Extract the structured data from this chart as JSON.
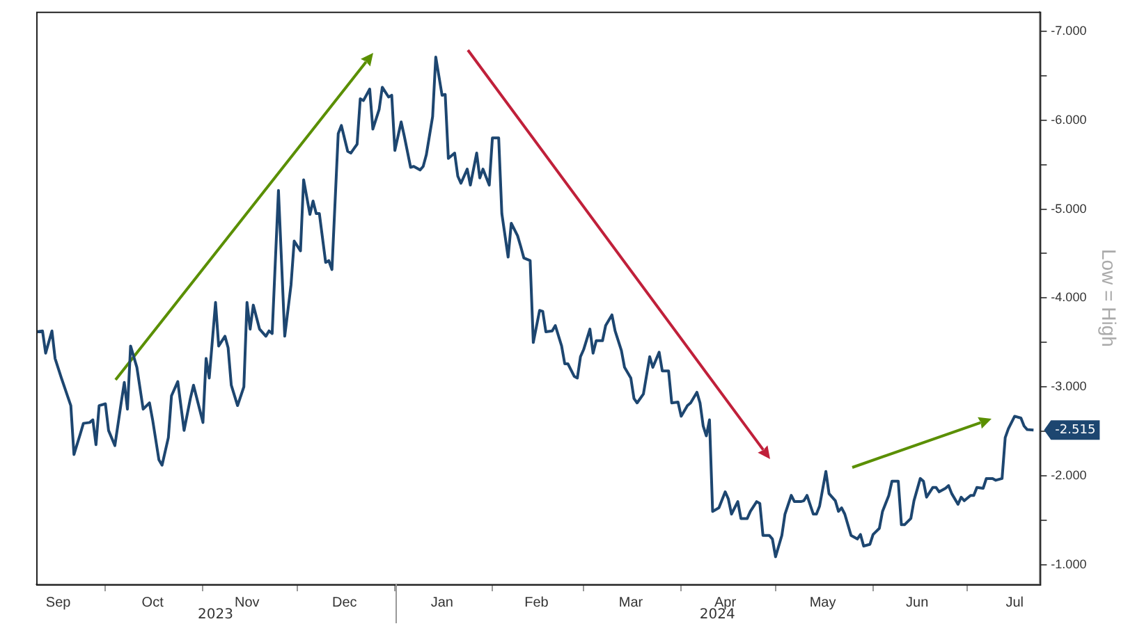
{
  "chart_data": {
    "type": "line",
    "ylabel": "Low = High",
    "legend": false,
    "grid": false,
    "marker": "none",
    "line_style": "solid",
    "xlim": [
      "2023-09-09",
      "2024-07-24"
    ],
    "ylim": [
      -0.78,
      -7.22
    ],
    "xticks": [
      {
        "value": "2023-09-16",
        "label": "Sep"
      },
      {
        "value": "2023-10-01",
        "label": null
      },
      {
        "value": "2023-10-16",
        "label": "Oct"
      },
      {
        "value": "2023-11-01",
        "label": null
      },
      {
        "value": "2023-11-15",
        "label": "Nov"
      },
      {
        "value": "2023-12-01",
        "label": null
      },
      {
        "value": "2023-12-16",
        "label": "Dec"
      },
      {
        "value": "2024-01-01",
        "label": null
      },
      {
        "value": "2024-01-16",
        "label": "Jan"
      },
      {
        "value": "2024-02-01",
        "label": null
      },
      {
        "value": "2024-02-15",
        "label": "Feb"
      },
      {
        "value": "2024-03-01",
        "label": null
      },
      {
        "value": "2024-03-16",
        "label": "Mar"
      },
      {
        "value": "2024-04-01",
        "label": null
      },
      {
        "value": "2024-04-15",
        "label": "Apr"
      },
      {
        "value": "2024-05-01",
        "label": null
      },
      {
        "value": "2024-05-16",
        "label": "May"
      },
      {
        "value": "2024-06-01",
        "label": null
      },
      {
        "value": "2024-06-15",
        "label": "Jun"
      },
      {
        "value": "2024-07-01",
        "label": null
      },
      {
        "value": "2024-07-16",
        "label": "Jul"
      }
    ],
    "yticks": [
      {
        "value": -7,
        "label": "-7.000"
      },
      {
        "value": -6.5,
        "label": null
      },
      {
        "value": -6,
        "label": "-6.000"
      },
      {
        "value": -5.5,
        "label": null
      },
      {
        "value": -5,
        "label": "-5.000"
      },
      {
        "value": -4.5,
        "label": null
      },
      {
        "value": -4,
        "label": "-4.000"
      },
      {
        "value": -3.5,
        "label": null
      },
      {
        "value": -3,
        "label": "-3.000"
      },
      {
        "value": -2.5,
        "label": null
      },
      {
        "value": -2,
        "label": "-2.000"
      },
      {
        "value": -1.5,
        "label": null
      },
      {
        "value": -1,
        "label": "-1.000"
      }
    ],
    "annotations": [
      "2023",
      "2024",
      {
        "text": "-2.515",
        "x": "2024-07-22",
        "y": -2.515
      }
    ],
    "series": [
      {
        "color": "#1d4670",
        "x": [
          "2023-09-09",
          "2023-09-11",
          "2023-09-12",
          "2023-09-14",
          "2023-09-15",
          "2023-09-17",
          "2023-09-20",
          "2023-09-21",
          "2023-09-23",
          "2023-09-24",
          "2023-09-26",
          "2023-09-27",
          "2023-09-28",
          "2023-09-29",
          "2023-10-01",
          "2023-10-02",
          "2023-10-04",
          "2023-10-06",
          "2023-10-07",
          "2023-10-08",
          "2023-10-09",
          "2023-10-11",
          "2023-10-13",
          "2023-10-15",
          "2023-10-16",
          "2023-10-18",
          "2023-10-19",
          "2023-10-21",
          "2023-10-22",
          "2023-10-24",
          "2023-10-26",
          "2023-10-28",
          "2023-10-29",
          "2023-11-01",
          "2023-11-02",
          "2023-11-03",
          "2023-11-05",
          "2023-11-06",
          "2023-11-08",
          "2023-11-09",
          "2023-11-10",
          "2023-11-12",
          "2023-11-14",
          "2023-11-15",
          "2023-11-16",
          "2023-11-17",
          "2023-11-19",
          "2023-11-21",
          "2023-11-22",
          "2023-11-23",
          "2023-11-25",
          "2023-11-27",
          "2023-11-29",
          "2023-11-30",
          "2023-12-02",
          "2023-12-03",
          "2023-12-05",
          "2023-12-06",
          "2023-12-07",
          "2023-12-08",
          "2023-12-10",
          "2023-12-11",
          "2023-12-12",
          "2023-12-14",
          "2023-12-15",
          "2023-12-17",
          "2023-12-18",
          "2023-12-20",
          "2023-12-21",
          "2023-12-22",
          "2023-12-24",
          "2023-12-25",
          "2023-12-27",
          "2023-12-28",
          "2023-12-30",
          "2023-12-31",
          "2024-01-01",
          "2024-01-03",
          "2024-01-04",
          "2024-01-06",
          "2024-01-07",
          "2024-01-09",
          "2024-01-10",
          "2024-01-11",
          "2024-01-13",
          "2024-01-14",
          "2024-01-16",
          "2024-01-17",
          "2024-01-18",
          "2024-01-20",
          "2024-01-21",
          "2024-01-22",
          "2024-01-24",
          "2024-01-25",
          "2024-01-27",
          "2024-01-28",
          "2024-01-29",
          "2024-01-31",
          "2024-02-01",
          "2024-02-03",
          "2024-02-04",
          "2024-02-06",
          "2024-02-07",
          "2024-02-09",
          "2024-02-10",
          "2024-02-11",
          "2024-02-13",
          "2024-02-14",
          "2024-02-16",
          "2024-02-17",
          "2024-02-18",
          "2024-02-20",
          "2024-02-21",
          "2024-02-23",
          "2024-02-24",
          "2024-02-25",
          "2024-02-27",
          "2024-02-28",
          "2024-02-29",
          "2024-03-01",
          "2024-03-03",
          "2024-03-04",
          "2024-03-05",
          "2024-03-07",
          "2024-03-08",
          "2024-03-10",
          "2024-03-11",
          "2024-03-13",
          "2024-03-14",
          "2024-03-16",
          "2024-03-17",
          "2024-03-18",
          "2024-03-20",
          "2024-03-22",
          "2024-03-23",
          "2024-03-25",
          "2024-03-26",
          "2024-03-28",
          "2024-03-29",
          "2024-03-31",
          "2024-04-01",
          "2024-04-03",
          "2024-04-04",
          "2024-04-06",
          "2024-04-07",
          "2024-04-08",
          "2024-04-09",
          "2024-04-10",
          "2024-04-11",
          "2024-04-13",
          "2024-04-15",
          "2024-04-16",
          "2024-04-17",
          "2024-04-19",
          "2024-04-20",
          "2024-04-22",
          "2024-04-23",
          "2024-04-25",
          "2024-04-26",
          "2024-04-27",
          "2024-04-29",
          "2024-04-30",
          "2024-05-01",
          "2024-05-03",
          "2024-05-04",
          "2024-05-06",
          "2024-05-07",
          "2024-05-09",
          "2024-05-10",
          "2024-05-11",
          "2024-05-13",
          "2024-05-14",
          "2024-05-15",
          "2024-05-17",
          "2024-05-18",
          "2024-05-20",
          "2024-05-21",
          "2024-05-22",
          "2024-05-23",
          "2024-05-25",
          "2024-05-27",
          "2024-05-28",
          "2024-05-29",
          "2024-05-31",
          "2024-06-01",
          "2024-06-03",
          "2024-06-04",
          "2024-06-06",
          "2024-06-07",
          "2024-06-09",
          "2024-06-10",
          "2024-06-11",
          "2024-06-13",
          "2024-06-14",
          "2024-06-16",
          "2024-06-17",
          "2024-06-18",
          "2024-06-20",
          "2024-06-21",
          "2024-06-22",
          "2024-06-24",
          "2024-06-25",
          "2024-06-26",
          "2024-06-28",
          "2024-06-29",
          "2024-06-30",
          "2024-07-02",
          "2024-07-03",
          "2024-07-04",
          "2024-07-06",
          "2024-07-07",
          "2024-07-09",
          "2024-07-10",
          "2024-07-12",
          "2024-07-13",
          "2024-07-14",
          "2024-07-16",
          "2024-07-18",
          "2024-07-19",
          "2024-07-20",
          "2024-07-22"
        ],
        "values": [
          -3.62,
          -3.63,
          -3.38,
          -3.63,
          -3.32,
          -3.1,
          -2.79,
          -2.24,
          -2.47,
          -2.59,
          -2.6,
          -2.63,
          -2.35,
          -2.79,
          -2.81,
          -2.51,
          -2.34,
          -2.82,
          -3.05,
          -2.75,
          -3.46,
          -3.22,
          -2.75,
          -2.82,
          -2.63,
          -2.18,
          -2.12,
          -2.43,
          -2.9,
          -3.06,
          -2.51,
          -2.87,
          -3.02,
          -2.6,
          -3.32,
          -3.1,
          -3.95,
          -3.46,
          -3.57,
          -3.44,
          -3.02,
          -2.79,
          -3.0,
          -3.95,
          -3.65,
          -3.92,
          -3.65,
          -3.57,
          -3.63,
          -3.6,
          -5.21,
          -3.57,
          -4.15,
          -4.64,
          -4.53,
          -5.33,
          -4.94,
          -5.09,
          -4.95,
          -4.95,
          -4.4,
          -4.42,
          -4.32,
          -5.85,
          -5.94,
          -5.65,
          -5.63,
          -5.73,
          -6.24,
          -6.22,
          -6.35,
          -5.9,
          -6.12,
          -6.37,
          -6.26,
          -6.28,
          -5.66,
          -5.98,
          -5.82,
          -5.47,
          -5.48,
          -5.44,
          -5.48,
          -5.61,
          -6.04,
          -6.71,
          -6.28,
          -6.29,
          -5.57,
          -5.63,
          -5.37,
          -5.29,
          -5.45,
          -5.27,
          -5.63,
          -5.35,
          -5.45,
          -5.27,
          -5.8,
          -5.8,
          -4.95,
          -4.46,
          -4.84,
          -4.7,
          -4.58,
          -4.45,
          -4.42,
          -3.5,
          -3.86,
          -3.85,
          -3.62,
          -3.63,
          -3.69,
          -3.46,
          -3.26,
          -3.26,
          -3.12,
          -3.1,
          -3.34,
          -3.42,
          -3.65,
          -3.38,
          -3.52,
          -3.52,
          -3.69,
          -3.81,
          -3.63,
          -3.41,
          -3.22,
          -3.1,
          -2.87,
          -2.82,
          -2.92,
          -3.34,
          -3.22,
          -3.39,
          -3.18,
          -3.18,
          -2.82,
          -2.83,
          -2.67,
          -2.79,
          -2.82,
          -2.94,
          -2.82,
          -2.56,
          -2.45,
          -2.63,
          -1.6,
          -1.64,
          -1.82,
          -1.74,
          -1.57,
          -1.71,
          -1.52,
          -1.52,
          -1.6,
          -1.71,
          -1.69,
          -1.33,
          -1.33,
          -1.29,
          -1.09,
          -1.33,
          -1.57,
          -1.78,
          -1.71,
          -1.71,
          -1.72,
          -1.78,
          -1.57,
          -1.57,
          -1.66,
          -2.05,
          -1.8,
          -1.72,
          -1.6,
          -1.64,
          -1.57,
          -1.33,
          -1.29,
          -1.34,
          -1.21,
          -1.23,
          -1.34,
          -1.41,
          -1.6,
          -1.78,
          -1.94,
          -1.94,
          -1.45,
          -1.45,
          -1.52,
          -1.72,
          -1.97,
          -1.94,
          -1.76,
          -1.87,
          -1.87,
          -1.82,
          -1.86,
          -1.89,
          -1.8,
          -1.68,
          -1.76,
          -1.72,
          -1.78,
          -1.78,
          -1.87,
          -1.86,
          -1.97,
          -1.97,
          -1.95,
          -1.97,
          -2.43,
          -2.53,
          -2.67,
          -2.65,
          -2.56,
          -2.52,
          -2.515
        ]
      }
    ]
  }
}
